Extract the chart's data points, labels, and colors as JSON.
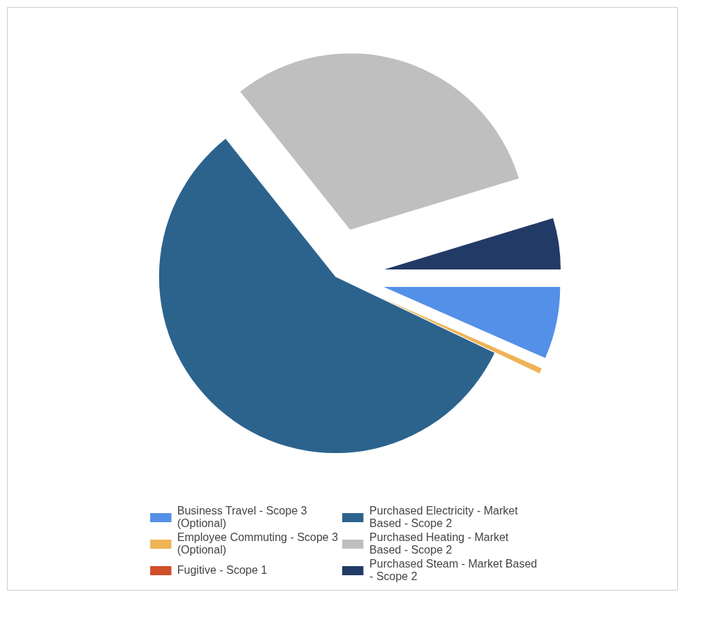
{
  "chart_data": {
    "type": "pie",
    "categories": [
      "Business Travel - Scope 3 (Optional)",
      "Employee Commuting - Scope 3 (Optional)",
      "Fugitive - Scope 1",
      "Purchased Electricity - Market Based - Scope 2",
      "Purchased Heating - Market Based - Scope 2",
      "Purchased Steam - Market Based - Scope 2"
    ],
    "values": [
      6.6,
      0.5,
      0,
      57.2,
      31.0,
      4.7
    ],
    "colors": [
      "#5490e8",
      "#f0b356",
      "#d04e2a",
      "#2c638d",
      "#bfbfbf",
      "#223a66"
    ],
    "legend": "bottom"
  }
}
